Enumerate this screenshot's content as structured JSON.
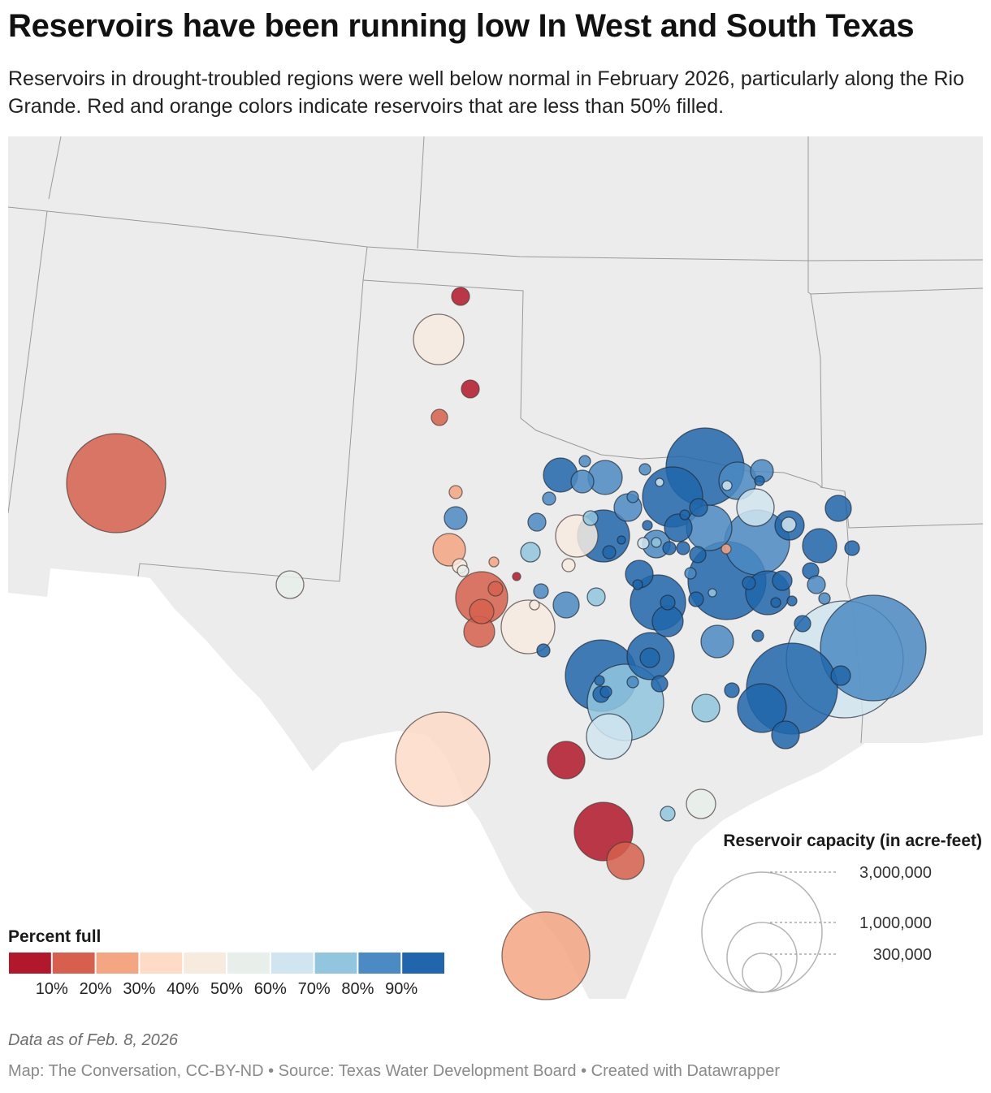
{
  "title": "Reservoirs have been running low In West and South Texas",
  "subtitle": "Reservoirs in drought-troubled regions were well below normal in February 2026, particularly along the Rio Grande. Red and orange colors indicate reservoirs that are less than 50% filled.",
  "color_legend": {
    "title": "Percent full",
    "tick_labels": [
      "10%",
      "20%",
      "30%",
      "40%",
      "50%",
      "60%",
      "70%",
      "80%",
      "90%"
    ],
    "bin_colors": [
      "#b2182b",
      "#d6604d",
      "#f4a582",
      "#fddbc7",
      "#f7ebe0",
      "#e8eee9",
      "#d1e5f0",
      "#92c5de",
      "#4b8ac2",
      "#2166ac"
    ]
  },
  "size_legend": {
    "title": "Reservoir capacity (in acre-feet)",
    "values": [
      "3,000,000",
      "1,000,000",
      "300,000"
    ]
  },
  "footer": {
    "note": "Data as of Feb. 8, 2026",
    "credits": "Map: The Conversation, CC-BY-ND • Source: Texas Water Development Board • Created with Datawrapper"
  }
}
